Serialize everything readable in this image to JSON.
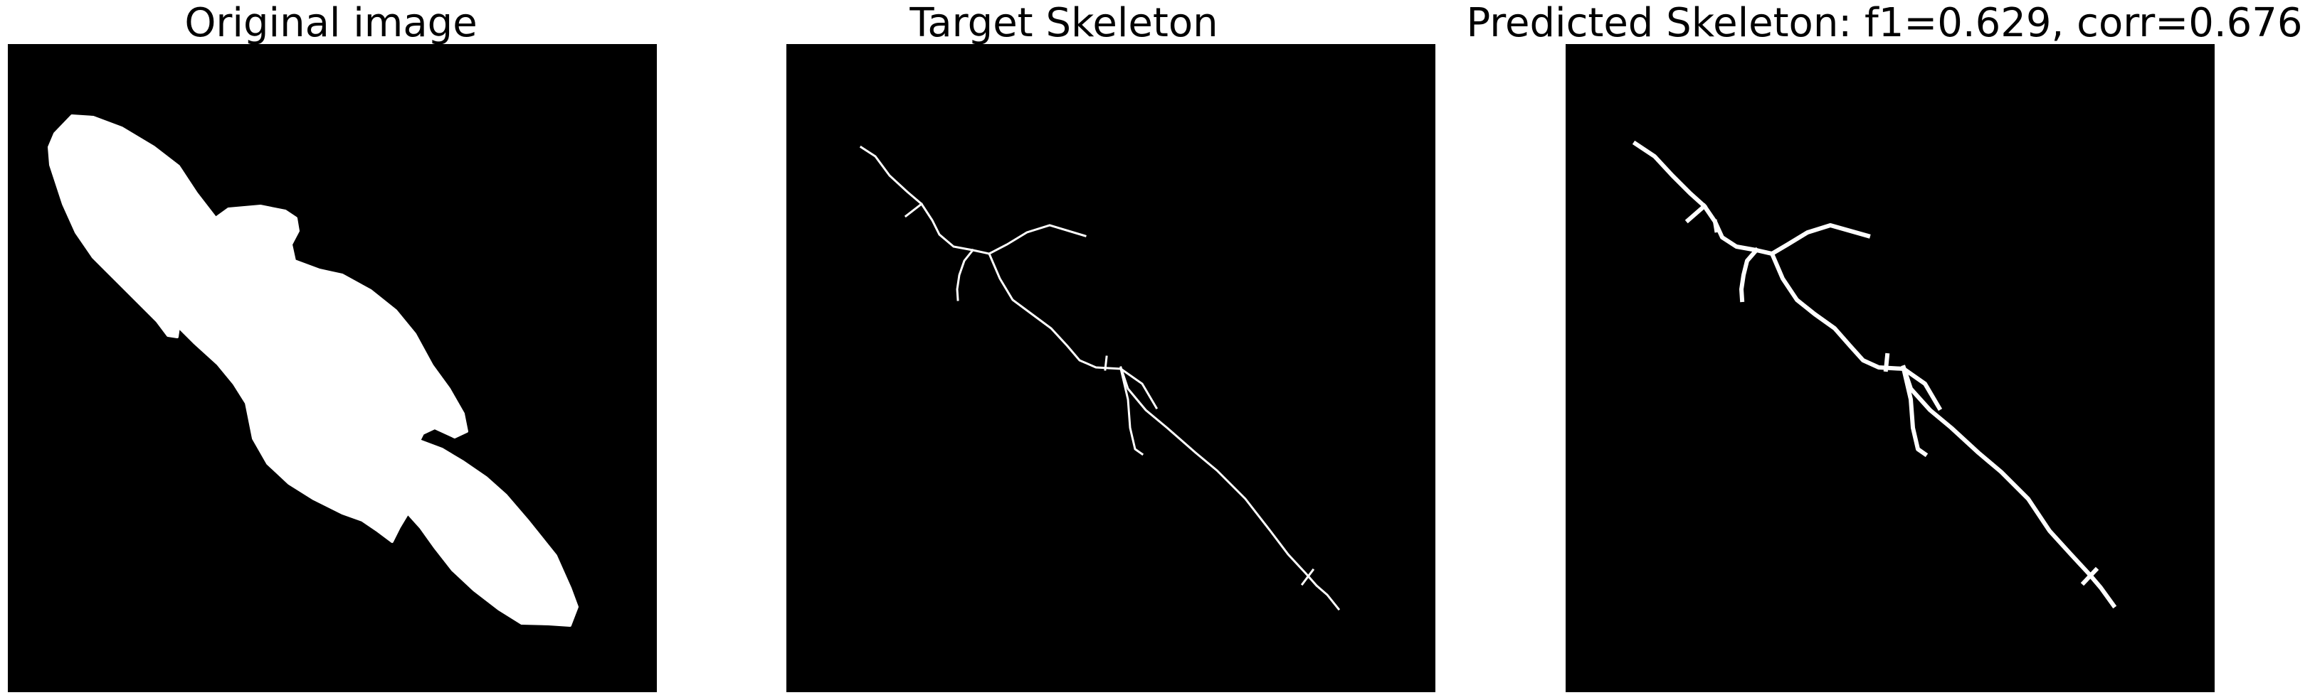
{
  "figure": {
    "panels": [
      {
        "id": "original",
        "title": "Original image"
      },
      {
        "id": "target",
        "title": "Target Skeleton"
      },
      {
        "id": "predicted",
        "title": "Predicted Skeleton: f1=0.629, corr=0.676"
      }
    ]
  },
  "colors": {
    "background": "#000000",
    "foreground": "#ffffff",
    "page": "#ffffff"
  }
}
